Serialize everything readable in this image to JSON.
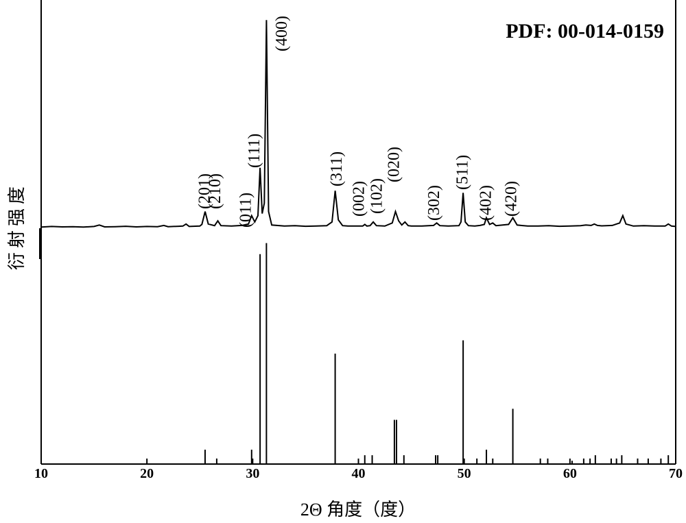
{
  "chart_data": [
    {
      "type": "line",
      "xlabel": "2Θ 角度（度）",
      "ylabel": "衍射强度",
      "xlim": [
        10,
        70
      ],
      "xticks": [
        10,
        20,
        30,
        40,
        50,
        60,
        70
      ],
      "ylim": [
        -4,
        108
      ],
      "color": "#000000",
      "x": [
        10,
        11,
        12,
        13,
        14,
        15,
        15.5,
        16,
        17,
        18,
        19,
        20,
        21,
        21.6,
        22,
        23,
        23.4,
        23.7,
        24,
        25,
        25.2,
        25.5,
        25.8,
        26.4,
        26.7,
        27,
        28,
        29,
        29.6,
        29.9,
        30.2,
        30.5,
        30.7,
        30.9,
        31.1,
        31.3,
        31.5,
        31.8,
        33,
        34,
        35,
        36,
        37,
        37.5,
        37.8,
        38.1,
        38.5,
        39,
        40,
        40.4,
        40.6,
        40.8,
        41.1,
        41.4,
        41.7,
        42.5,
        43.2,
        43.5,
        43.8,
        44.1,
        44.4,
        44.7,
        45,
        46,
        47.1,
        47.4,
        47.7,
        48.5,
        49.5,
        49.7,
        49.9,
        50.1,
        50.4,
        51,
        51.5,
        51.9,
        52.1,
        52.4,
        52.7,
        53,
        54.2,
        54.6,
        55,
        56,
        57,
        58,
        59,
        60,
        61,
        61.5,
        62,
        62.3,
        62.6,
        63,
        64,
        64.4,
        64.7,
        65,
        65.3,
        66,
        67,
        68,
        69,
        69.3,
        69.6,
        70
      ],
      "values": [
        0.5,
        0.8,
        0.6,
        0.7,
        0.5,
        0.8,
        1.5,
        0.6,
        0.7,
        0.9,
        0.6,
        0.8,
        0.7,
        1.3,
        0.7,
        0.9,
        1,
        2,
        0.8,
        1,
        1.8,
        8,
        2,
        1.2,
        3.5,
        1.2,
        1,
        1.3,
        2,
        6,
        3,
        6,
        29,
        7,
        12,
        100,
        8,
        1.5,
        1,
        1.2,
        0.9,
        1,
        1.2,
        3,
        18,
        4,
        1.2,
        1,
        1,
        1,
        1.8,
        1,
        1.2,
        3,
        1.2,
        1,
        2.5,
        8,
        3.5,
        1.5,
        3,
        1.2,
        1,
        1,
        1.3,
        2.5,
        1.2,
        1,
        1.2,
        3,
        17,
        3,
        1.2,
        1,
        1.3,
        1.8,
        5,
        1.8,
        2.5,
        1.2,
        1.8,
        5,
        1.5,
        1,
        1,
        1.2,
        0.9,
        1,
        1.2,
        1.5,
        1.3,
        2,
        1.3,
        1.1,
        1.3,
        2,
        2.5,
        6,
        2,
        1,
        1.2,
        1,
        1,
        2,
        1,
        0.8
      ],
      "annotations": [
        {
          "text": "(201)",
          "x": 25.4
        },
        {
          "text": "(210)",
          "x": 26.4
        },
        {
          "text": "(011)",
          "x": 29.3
        },
        {
          "text": "(111)",
          "x": 30.1
        },
        {
          "text": "(400)",
          "x": 32.7
        },
        {
          "text": "(311)",
          "x": 37.9
        },
        {
          "text": "(002)",
          "x": 40.0
        },
        {
          "text": "(102)",
          "x": 41.7
        },
        {
          "text": "(020)",
          "x": 43.3
        },
        {
          "text": "(302)",
          "x": 47.1
        },
        {
          "text": "(511)",
          "x": 49.8
        },
        {
          "text": "(402)",
          "x": 52.0
        },
        {
          "text": "(420)",
          "x": 54.4
        }
      ]
    },
    {
      "type": "stick",
      "annotation": "PDF: 00-014-0159",
      "ylim": [
        0,
        103
      ],
      "color": "#000000",
      "x": [
        25.5,
        26.6,
        29.9,
        30.7,
        31.3,
        37.8,
        40.6,
        41.3,
        43.4,
        43.6,
        44.3,
        47.3,
        47.5,
        49.9,
        51.2,
        52.1,
        52.7,
        54.6,
        57.2,
        57.9,
        60.2,
        61.3,
        61.9,
        62.4,
        63.9,
        64.4,
        64.9,
        66.4,
        67.4,
        68.6,
        69.3
      ],
      "values": [
        6.5,
        2.5,
        6.5,
        95,
        100,
        50,
        4,
        4,
        20,
        20,
        4,
        4,
        4,
        56,
        2.5,
        6.5,
        2.5,
        25,
        2.5,
        2.5,
        1.5,
        2.5,
        2.5,
        4,
        2.5,
        2.5,
        4,
        2.5,
        2.5,
        2.5,
        4
      ]
    }
  ]
}
